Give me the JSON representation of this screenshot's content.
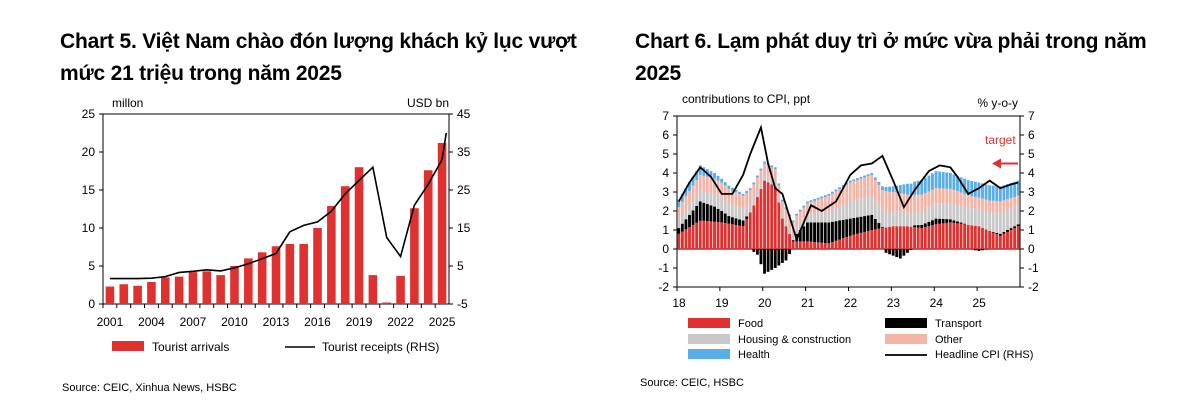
{
  "colors": {
    "red": "#e03131",
    "black": "#000000",
    "grey": "#c8c8c8",
    "pink": "#f4b4a6",
    "blue": "#5aaee8",
    "axis": "#000000"
  },
  "left": {
    "title": "Chart 5. Việt Nam chào đón lượng khách kỷ lục vượt mức 21 triệu trong năm 2025",
    "source": "Source: CEIC, Xinhua News, HSBC",
    "chart_data": {
      "type": "bar",
      "title": "Chart 5. Việt Nam chào đón lượng khách kỷ lục vượt mức 21 triệu trong năm 2025",
      "ylabel_left": "millon",
      "ylabel_right": "USD bn",
      "ylim_left": [
        0,
        25
      ],
      "yticks_left": [
        "25",
        "20",
        "15",
        "10",
        "5",
        "0"
      ],
      "ylim_right": [
        -5,
        45
      ],
      "yticks_right": [
        "45",
        "35",
        "25",
        "15",
        "5",
        "-5"
      ],
      "xtick_labels": [
        "2001",
        "2004",
        "2007",
        "2010",
        "2013",
        "2016",
        "2019",
        "2022",
        "2025"
      ],
      "categories": [
        "2001",
        "2002",
        "2003",
        "2004",
        "2005",
        "2006",
        "2007",
        "2008",
        "2009",
        "2010",
        "2011",
        "2012",
        "2013",
        "2014",
        "2015",
        "2016",
        "2017",
        "2018",
        "2019",
        "2020",
        "2021",
        "2022",
        "2023",
        "2024",
        "2025"
      ],
      "series": [
        {
          "name": "Tourist arrivals",
          "type": "bar",
          "axis": "left",
          "values": [
            2.3,
            2.6,
            2.4,
            2.9,
            3.5,
            3.6,
            4.2,
            4.3,
            3.8,
            5.0,
            6.0,
            6.8,
            7.6,
            7.9,
            7.9,
            10.0,
            12.9,
            15.5,
            18.0,
            3.8,
            0.2,
            3.7,
            12.6,
            17.6,
            21.2
          ]
        },
        {
          "name": "Tourist receipts (RHS)",
          "type": "line",
          "axis": "right",
          "values": [
            1.7,
            1.7,
            1.7,
            1.8,
            2.2,
            3.3,
            3.6,
            4.0,
            3.7,
            4.5,
            5.6,
            6.9,
            8.3,
            14.0,
            15.7,
            16.6,
            19.4,
            24.0,
            27.5,
            31.0,
            12.5,
            7.5,
            21.0,
            26.5,
            33.0
          ]
        }
      ],
      "receipts_2025_late": 40.0,
      "legend": [
        "Tourist arrivals",
        "Tourist receipts (RHS)"
      ]
    }
  },
  "right": {
    "title": "Chart 6. Lạm phát duy trì ở mức vừa phải trong năm 2025",
    "source": "Source: CEIC, HSBC",
    "chart_data": {
      "type": "bar",
      "title": "Chart 6. Lạm phát duy trì ở mức vừa phải trong năm 2025",
      "ylabel_left": "contributions to CPI, ppt",
      "ylabel_right": "% y-o-y",
      "ylim": [
        -2,
        7
      ],
      "yticks_left": [
        "7",
        "6",
        "5",
        "4",
        "3",
        "2",
        "1",
        "0",
        "-1",
        "-2"
      ],
      "yticks_right": [
        "7",
        "6",
        "5",
        "4",
        "3",
        "2",
        "1",
        "0",
        "-1",
        "-2"
      ],
      "xtick_labels": [
        "18",
        "19",
        "20",
        "21",
        "22",
        "23",
        "24",
        "25"
      ],
      "annotation": "target",
      "target_value": 4.5,
      "stack_series": [
        {
          "name": "Food",
          "color": "red",
          "knots": [
            [
              0,
              0.8
            ],
            [
              6,
              1.5
            ],
            [
              12,
              1.4
            ],
            [
              18,
              1.2
            ],
            [
              21,
              2.3
            ],
            [
              24,
              3.6
            ],
            [
              27,
              3.3
            ],
            [
              29,
              1.6
            ],
            [
              32,
              0.4
            ],
            [
              36,
              0.4
            ],
            [
              42,
              0.3
            ],
            [
              48,
              0.7
            ],
            [
              54,
              1.0
            ],
            [
              60,
              1.2
            ],
            [
              64,
              1.2
            ],
            [
              68,
              1.1
            ],
            [
              72,
              1.3
            ],
            [
              76,
              1.4
            ],
            [
              80,
              1.3
            ],
            [
              84,
              1.2
            ],
            [
              90,
              0.7
            ],
            [
              95,
              1.2
            ]
          ]
        },
        {
          "name": "Transport",
          "color": "black",
          "knots": [
            [
              0,
              0.3
            ],
            [
              6,
              1.0
            ],
            [
              10,
              0.8
            ],
            [
              14,
              0.4
            ],
            [
              18,
              0.3
            ],
            [
              22,
              -0.3
            ],
            [
              24,
              -1.3
            ],
            [
              27,
              -1.0
            ],
            [
              30,
              -0.6
            ],
            [
              33,
              0.4
            ],
            [
              36,
              1.0
            ],
            [
              42,
              1.1
            ],
            [
              48,
              0.9
            ],
            [
              54,
              0.8
            ],
            [
              58,
              -0.2
            ],
            [
              62,
              -0.5
            ],
            [
              66,
              0.1
            ],
            [
              72,
              0.3
            ],
            [
              78,
              0.1
            ],
            [
              84,
              -0.1
            ],
            [
              90,
              0.1
            ],
            [
              95,
              0.1
            ]
          ]
        },
        {
          "name": "Housing & construction",
          "color": "grey",
          "knots": [
            [
              0,
              0.5
            ],
            [
              6,
              0.6
            ],
            [
              12,
              0.7
            ],
            [
              18,
              0.6
            ],
            [
              24,
              0.3
            ],
            [
              30,
              0.3
            ],
            [
              36,
              0.4
            ],
            [
              42,
              0.6
            ],
            [
              48,
              0.9
            ],
            [
              54,
              1.0
            ],
            [
              60,
              0.8
            ],
            [
              66,
              0.7
            ],
            [
              72,
              0.8
            ],
            [
              78,
              0.9
            ],
            [
              84,
              0.9
            ],
            [
              90,
              1.1
            ],
            [
              95,
              1.0
            ]
          ]
        },
        {
          "name": "Other",
          "color": "pink",
          "knots": [
            [
              0,
              0.6
            ],
            [
              6,
              0.8
            ],
            [
              12,
              0.8
            ],
            [
              18,
              0.7
            ],
            [
              24,
              0.6
            ],
            [
              30,
              0.6
            ],
            [
              36,
              0.6
            ],
            [
              42,
              0.8
            ],
            [
              48,
              1.0
            ],
            [
              54,
              1.1
            ],
            [
              60,
              1.0
            ],
            [
              66,
              0.9
            ],
            [
              72,
              0.8
            ],
            [
              78,
              0.7
            ],
            [
              84,
              0.6
            ],
            [
              90,
              0.6
            ],
            [
              95,
              0.5
            ]
          ]
        },
        {
          "name": "Health",
          "color": "blue",
          "knots": [
            [
              0,
              0.4
            ],
            [
              6,
              0.5
            ],
            [
              12,
              0.2
            ],
            [
              18,
              0.1
            ],
            [
              24,
              0.1
            ],
            [
              30,
              0.1
            ],
            [
              36,
              0.1
            ],
            [
              42,
              0.1
            ],
            [
              48,
              0.1
            ],
            [
              54,
              0.1
            ],
            [
              60,
              0.3
            ],
            [
              66,
              0.7
            ],
            [
              72,
              0.9
            ],
            [
              78,
              0.8
            ],
            [
              84,
              0.8
            ],
            [
              90,
              0.8
            ],
            [
              95,
              0.8
            ]
          ]
        }
      ],
      "line_series": {
        "name": "Headline CPI (RHS)",
        "knots": [
          [
            0,
            2.5
          ],
          [
            3,
            3.5
          ],
          [
            6,
            4.3
          ],
          [
            9,
            3.8
          ],
          [
            12,
            2.9
          ],
          [
            15,
            2.9
          ],
          [
            18,
            3.9
          ],
          [
            20,
            5.0
          ],
          [
            23,
            6.4
          ],
          [
            25,
            4.5
          ],
          [
            27,
            3.2
          ],
          [
            29,
            2.9
          ],
          [
            31,
            1.7
          ],
          [
            33,
            0.5
          ],
          [
            35,
            1.4
          ],
          [
            37,
            2.3
          ],
          [
            40,
            2.0
          ],
          [
            44,
            2.5
          ],
          [
            48,
            3.9
          ],
          [
            51,
            4.4
          ],
          [
            54,
            4.5
          ],
          [
            57,
            4.9
          ],
          [
            60,
            3.6
          ],
          [
            63,
            2.2
          ],
          [
            66,
            3.1
          ],
          [
            70,
            4.1
          ],
          [
            73,
            4.4
          ],
          [
            76,
            4.3
          ],
          [
            78,
            3.8
          ],
          [
            81,
            2.9
          ],
          [
            84,
            3.2
          ],
          [
            87,
            3.6
          ],
          [
            90,
            3.2
          ],
          [
            93,
            3.4
          ],
          [
            95,
            3.5
          ]
        ]
      },
      "legend": [
        "Food",
        "Transport",
        "Housing & construction",
        "Other",
        "Health",
        "Headline CPI (RHS)"
      ]
    }
  }
}
